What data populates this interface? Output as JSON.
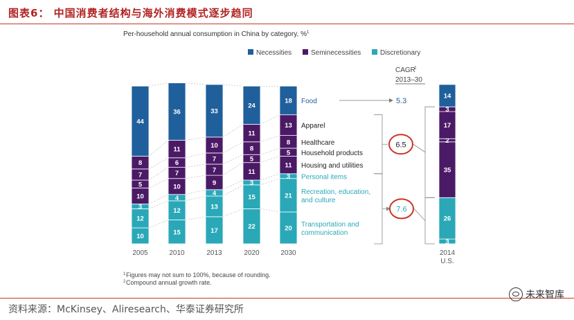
{
  "figure_title": "图表6：  中国消费者结构与海外消费模式逐步趋同",
  "source": "资料来源：McKinsey、Aliresearch、华泰证券研究所",
  "watermark": "未来智库",
  "colors": {
    "necessities": "#1f5f9b",
    "seminecessities": "#4b1a66",
    "discretionary": "#2aa8b8",
    "circle": "#cc3322",
    "title": "#b22222"
  },
  "chart_data": {
    "type": "bar",
    "stacked": true,
    "title": "Per-household annual consumption in China by category, %",
    "title_sup": "1",
    "legend": [
      {
        "name": "Necessities",
        "color": "#1f5f9b"
      },
      {
        "name": "Seminecessities",
        "color": "#4b1a66"
      },
      {
        "name": "Discretionary",
        "color": "#2aa8b8"
      }
    ],
    "categories": [
      "2005",
      "2010",
      "2013",
      "2020",
      "2030"
    ],
    "series": [
      {
        "name": "Transportation and communication",
        "group": "Discretionary",
        "values": [
          10,
          15,
          17,
          22,
          20
        ]
      },
      {
        "name": "Recreation, education, and culture",
        "group": "Discretionary",
        "values": [
          12,
          12,
          13,
          15,
          21
        ]
      },
      {
        "name": "Personal items",
        "group": "Discretionary",
        "values": [
          3,
          4,
          4,
          3,
          3
        ]
      },
      {
        "name": "Housing and utilities",
        "group": "Seminecessities",
        "values": [
          10,
          10,
          9,
          11,
          11
        ]
      },
      {
        "name": "Household products",
        "group": "Seminecessities",
        "values": [
          5,
          7,
          7,
          5,
          5
        ]
      },
      {
        "name": "Healthcare",
        "group": "Seminecessities",
        "values": [
          7,
          6,
          7,
          8,
          8
        ]
      },
      {
        "name": "Apparel",
        "group": "Seminecessities",
        "values": [
          8,
          11,
          10,
          11,
          13
        ]
      },
      {
        "name": "Food",
        "group": "Necessities",
        "values": [
          44,
          36,
          33,
          24,
          18
        ]
      }
    ],
    "us_2014": {
      "label": "2014",
      "sublabel": "U.S.",
      "segments": [
        {
          "group": "Discretionary",
          "value": 3
        },
        {
          "group": "Discretionary",
          "value": 26
        },
        {
          "group": "Seminecessities",
          "value": 35
        },
        {
          "group": "Seminecessities",
          "value": 2
        },
        {
          "group": "Seminecessities",
          "value": 17
        },
        {
          "group": "Seminecessities",
          "value": 3
        },
        {
          "group": "Necessities",
          "value": 14
        }
      ]
    },
    "cagr": {
      "header_line1": "CAGR",
      "header_sup": "2",
      "header_line2": "2013–30",
      "food": "5.3",
      "seminecessities": "6.5",
      "discretionary": "7.6"
    },
    "footnotes": [
      {
        "sup": "1",
        "text": "Figures may not sum to 100%, because of rounding."
      },
      {
        "sup": "2",
        "text": "Compound annual growth rate."
      }
    ]
  }
}
